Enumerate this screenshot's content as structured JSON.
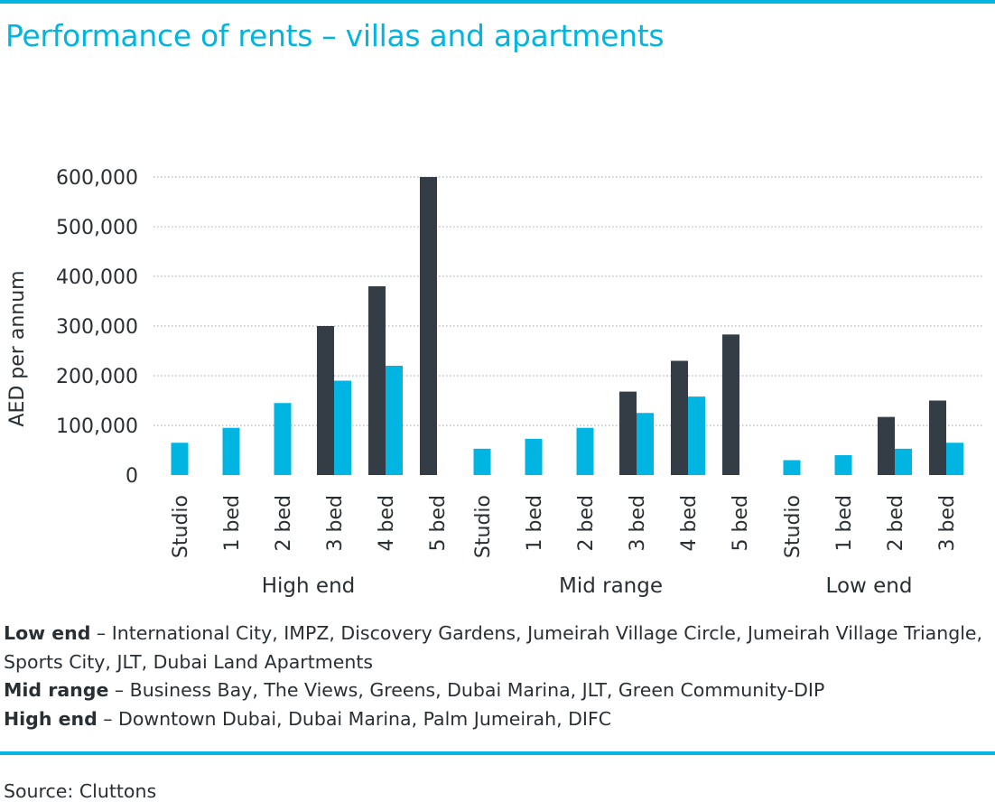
{
  "title": "Performance of rents – villas and apartments",
  "colors": {
    "accent": "#00b5e2",
    "villa": "#343d46",
    "apartment": "#00b5e2",
    "grid": "#9aa0a6",
    "text": "#2a2f33"
  },
  "chart_data": {
    "type": "bar",
    "title": "Performance of rents – villas and apartments",
    "ylabel": "AED per annum",
    "ylim": [
      0,
      600000
    ],
    "yticks": [
      0,
      100000,
      200000,
      300000,
      400000,
      500000,
      600000
    ],
    "ytick_labels": [
      "0",
      "100,000",
      "200,000",
      "300,000",
      "400,000",
      "500,000",
      "600,000"
    ],
    "grid": "horizontal-dotted",
    "groups": [
      {
        "name": "High end",
        "categories": [
          "Studio",
          "1 bed",
          "2 bed",
          "3 bed",
          "4 bed",
          "5 bed"
        ],
        "villas": [
          null,
          null,
          null,
          300000,
          380000,
          600000
        ],
        "apartments": [
          65000,
          95000,
          145000,
          190000,
          220000,
          null
        ]
      },
      {
        "name": "Mid range",
        "categories": [
          "Studio",
          "1 bed",
          "2 bed",
          "3 bed",
          "4 bed",
          "5 bed"
        ],
        "villas": [
          null,
          null,
          null,
          168000,
          230000,
          283000
        ],
        "apartments": [
          53000,
          73000,
          95000,
          125000,
          158000,
          null
        ]
      },
      {
        "name": "Low end",
        "categories": [
          "Studio",
          "1 bed",
          "2 bed",
          "3 bed"
        ],
        "villas": [
          null,
          null,
          117000,
          150000
        ],
        "apartments": [
          30000,
          40000,
          53000,
          65000
        ]
      }
    ]
  },
  "notes": [
    {
      "label": "Low end",
      "text": " – International City, IMPZ, Discovery Gardens, Jumeirah Village Circle, Jumeirah Village Triangle, Sports City, JLT, Dubai Land Apartments"
    },
    {
      "label": "Mid range",
      "text": " – Business Bay, The Views, Greens, Dubai Marina, JLT, Green Community-DIP"
    },
    {
      "label": "High end",
      "text": " – Downtown Dubai, Dubai Marina, Palm Jumeirah, DIFC"
    }
  ],
  "source": "Source: Cluttons"
}
